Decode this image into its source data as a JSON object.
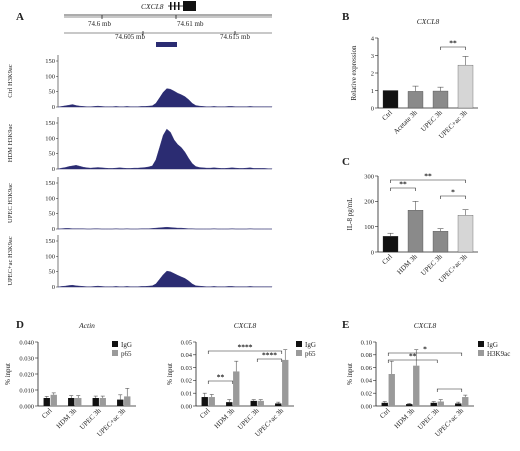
{
  "colors": {
    "track": "#2b2c72",
    "black_bar": "#111111",
    "grey_bar": "#8a8a8a",
    "light_bar": "#d6d6d6",
    "igg": "#111111",
    "p65": "#9a9a9a",
    "h3k9ac": "#9a9a9a"
  },
  "panel_letters": [
    "A",
    "B",
    "C",
    "D",
    "E"
  ],
  "chart_data": [
    {
      "panel": "A",
      "type": "area",
      "gene_label": "CXCL8",
      "coordinates": [
        "74.6 mb",
        "74.61 mb",
        "74.605 mb",
        "74.615 mb"
      ],
      "y_ticks": [
        "0",
        "50",
        "100",
        "150"
      ],
      "tracks": [
        {
          "name": "Ctrl H3K9ac",
          "values": [
            0,
            2,
            4,
            6,
            8,
            5,
            3,
            2,
            1,
            1,
            2,
            3,
            2,
            1,
            1,
            1,
            2,
            1,
            1,
            2,
            1,
            1,
            1,
            2,
            2,
            3,
            4,
            12,
            30,
            48,
            60,
            58,
            52,
            45,
            40,
            34,
            24,
            12,
            5,
            3,
            2,
            1,
            1,
            2,
            1,
            1,
            1,
            2,
            2,
            1,
            1,
            1,
            1,
            2,
            1,
            1,
            1,
            1,
            1,
            1
          ]
        },
        {
          "name": "HDM H3K9ac",
          "values": [
            0,
            3,
            5,
            8,
            10,
            12,
            9,
            6,
            4,
            3,
            4,
            5,
            4,
            3,
            2,
            2,
            3,
            4,
            3,
            2,
            2,
            3,
            3,
            4,
            5,
            7,
            10,
            30,
            70,
            110,
            130,
            120,
            95,
            80,
            70,
            55,
            35,
            18,
            8,
            5,
            4,
            3,
            3,
            4,
            3,
            2,
            2,
            3,
            4,
            3,
            2,
            2,
            3,
            4,
            2,
            2,
            2,
            2,
            1,
            1
          ]
        },
        {
          "name": "UPEC H3K9ac",
          "values": [
            0,
            1,
            2,
            2,
            1,
            1,
            1,
            1,
            0,
            0,
            1,
            1,
            0,
            0,
            0,
            0,
            1,
            0,
            0,
            1,
            0,
            0,
            0,
            1,
            1,
            1,
            2,
            3,
            4,
            5,
            6,
            5,
            4,
            3,
            3,
            2,
            1,
            1,
            0,
            0,
            0,
            0,
            0,
            1,
            0,
            0,
            0,
            0,
            1,
            0,
            0,
            0,
            0,
            1,
            0,
            0,
            0,
            0,
            0,
            0
          ]
        },
        {
          "name": "UPEC+ac H3K9ac",
          "values": [
            0,
            2,
            3,
            5,
            6,
            4,
            3,
            2,
            1,
            1,
            2,
            3,
            2,
            1,
            1,
            1,
            2,
            1,
            1,
            2,
            1,
            1,
            1,
            2,
            2,
            3,
            4,
            10,
            25,
            40,
            52,
            50,
            44,
            38,
            33,
            28,
            20,
            10,
            4,
            3,
            2,
            1,
            1,
            2,
            1,
            1,
            1,
            2,
            2,
            1,
            1,
            1,
            1,
            2,
            1,
            1,
            1,
            1,
            1,
            1
          ]
        }
      ]
    },
    {
      "panel": "B",
      "type": "bar",
      "title": "CXCL8",
      "ylabel": "Relative expression",
      "ylim": [
        0,
        4
      ],
      "y_ticks": [
        "0",
        "1",
        "2",
        "3",
        "4"
      ],
      "categories": [
        "Ctrl",
        "Acetate 3h",
        "UPEC 3h",
        "UPEC+ac 3h"
      ],
      "values": [
        1.0,
        0.95,
        0.97,
        2.45
      ],
      "errors": [
        0,
        0.3,
        0.22,
        0.5
      ],
      "significance": [
        {
          "from": 2,
          "to": 3,
          "label": "**"
        }
      ]
    },
    {
      "panel": "C",
      "type": "bar",
      "ylabel": "IL-8 pg/mL",
      "ylim": [
        0,
        300
      ],
      "y_ticks": [
        "0",
        "100",
        "200",
        "300"
      ],
      "categories": [
        "Ctrl",
        "HDM 3h",
        "UPEC 3h",
        "UPEC+ac 3h"
      ],
      "values": [
        62,
        165,
        82,
        145
      ],
      "errors": [
        12,
        35,
        10,
        22
      ],
      "significance": [
        {
          "from": 0,
          "to": 1,
          "label": "**"
        },
        {
          "from": 2,
          "to": 3,
          "label": "*"
        },
        {
          "from": 0,
          "to": 3,
          "label": "**"
        }
      ]
    },
    {
      "panel": "D",
      "type": "bar",
      "title": "Actin",
      "ylabel": "% input",
      "ylim": [
        0,
        0.04
      ],
      "y_ticks": [
        "0.000",
        "0.010",
        "0.020",
        "0.030",
        "0.040"
      ],
      "categories": [
        "Ctrl",
        "HDM 3h",
        "UPEC 3h",
        "UPEC+ac 3h"
      ],
      "series": [
        {
          "name": "IgG",
          "values": [
            0.005,
            0.005,
            0.005,
            0.004
          ],
          "errors": [
            0.001,
            0.0015,
            0.0012,
            0.003
          ]
        },
        {
          "name": "p65",
          "values": [
            0.007,
            0.005,
            0.005,
            0.006
          ],
          "errors": [
            0.0012,
            0.0015,
            0.0012,
            0.005
          ]
        }
      ],
      "significance": []
    },
    {
      "panel": "D",
      "type": "bar",
      "title": "CXCL8",
      "ylabel": "% input",
      "ylim": [
        0,
        0.05
      ],
      "y_ticks": [
        "0.00",
        "0.01",
        "0.02",
        "0.03",
        "0.04",
        "0.05"
      ],
      "categories": [
        "Ctrl",
        "HDM 3h",
        "UPEC 3h",
        "UPEC+ac 3h"
      ],
      "series": [
        {
          "name": "IgG",
          "values": [
            0.007,
            0.003,
            0.004,
            0.002
          ],
          "errors": [
            0.003,
            0.002,
            0.001,
            0.001
          ]
        },
        {
          "name": "p65",
          "values": [
            0.007,
            0.027,
            0.004,
            0.036
          ],
          "errors": [
            0.002,
            0.008,
            0.001,
            0.008
          ]
        }
      ],
      "significance": [
        {
          "from": 0,
          "to": 1,
          "label": "**"
        },
        {
          "from": 2,
          "to": 3,
          "label": "****"
        },
        {
          "from": 0,
          "to": 3,
          "label": "****"
        }
      ]
    },
    {
      "panel": "E",
      "type": "bar",
      "title": "CXCL8",
      "ylabel": "% input",
      "ylim": [
        0,
        0.1
      ],
      "y_ticks": [
        "0.00",
        "0.02",
        "0.04",
        "0.06",
        "0.08",
        "0.10"
      ],
      "categories": [
        "Ctrl",
        "HDM 3h",
        "UPEC 3h",
        "UPEC+ac 3h"
      ],
      "series": [
        {
          "name": "IgG",
          "values": [
            0.005,
            0.003,
            0.005,
            0.004
          ],
          "errors": [
            0.002,
            0.001,
            0.002,
            0.002
          ]
        },
        {
          "name": "H3K9ac",
          "values": [
            0.05,
            0.063,
            0.007,
            0.014
          ],
          "errors": [
            0.02,
            0.025,
            0.003,
            0.003
          ]
        }
      ],
      "significance": [
        {
          "from": 0,
          "to": 2,
          "label": "**"
        },
        {
          "from": 0,
          "to": 3,
          "label": "*"
        },
        {
          "from": 2,
          "to": 3,
          "label": ""
        }
      ]
    }
  ]
}
